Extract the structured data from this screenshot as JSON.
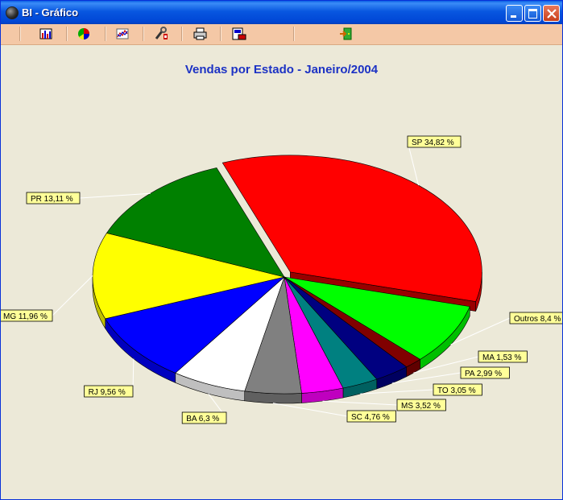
{
  "window": {
    "title": "BI - Gráfico"
  },
  "toolbar": {
    "tools": [
      {
        "name": "bar-chart-tool-icon"
      },
      {
        "name": "pie-chart-tool-icon"
      },
      {
        "name": "line-chart-tool-icon"
      },
      {
        "name": "settings-tool-icon"
      },
      {
        "name": "print-icon"
      },
      {
        "name": "export-icon"
      },
      {
        "name": "exit-icon"
      }
    ]
  },
  "chart_data": {
    "type": "pie",
    "title": "Vendas por Estado - Janeiro/2004",
    "slices": [
      {
        "label": "SP 34,82 %",
        "value": 34.82,
        "color": "#ff0000"
      },
      {
        "label": "Outros 8,4 %",
        "value": 8.4,
        "color": "#00ff00"
      },
      {
        "label": "MA 1,53 %",
        "value": 1.53,
        "color": "#800000"
      },
      {
        "label": "PA 2,99 %",
        "value": 2.99,
        "color": "#000080"
      },
      {
        "label": "TO 3,05 %",
        "value": 3.05,
        "color": "#008080"
      },
      {
        "label": "MS 3,52 %",
        "value": 3.52,
        "color": "#ff00ff"
      },
      {
        "label": "SC 4,76 %",
        "value": 4.76,
        "color": "#808080"
      },
      {
        "label": "BA 6,3 %",
        "value": 6.3,
        "color": "#ffffff"
      },
      {
        "label": "RJ 9,56 %",
        "value": 9.56,
        "color": "#0000ff"
      },
      {
        "label": "MG 11,96 %",
        "value": 11.96,
        "color": "#ffff00"
      },
      {
        "label": "PR 13,11 %",
        "value": 13.11,
        "color": "#008000"
      }
    ],
    "exploded": [
      "SP 34,82 %"
    ],
    "legend": "none"
  }
}
